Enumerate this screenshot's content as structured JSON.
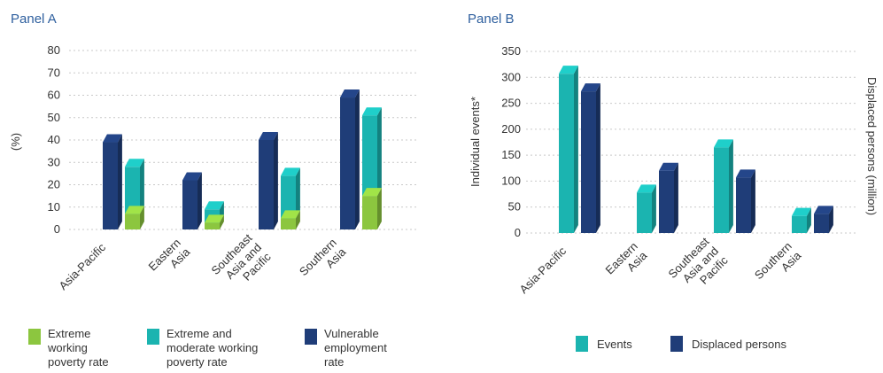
{
  "panels": {
    "a": {
      "title": "Panel A"
    },
    "b": {
      "title": "Panel B"
    }
  },
  "colors": {
    "lime": "#8cc63f",
    "teal": "#1bb4b0",
    "navy": "#1f3d78",
    "floor": "#d9d9d9",
    "title": "#2e5f9e"
  },
  "chart_data": [
    {
      "type": "bar",
      "title": "Panel A",
      "ylabel": "(%)",
      "ylim": [
        0,
        80
      ],
      "yticks": [
        0,
        10,
        20,
        30,
        40,
        50,
        60,
        70,
        80
      ],
      "grid": true,
      "categories": [
        "Asia-Pacific",
        "Eastern Asia",
        "Southeast Asia and Pacific",
        "Southern Asia"
      ],
      "category_label_lines": [
        [
          "Asia-Pacific"
        ],
        [
          "Eastern",
          "Asia"
        ],
        [
          "Southeast",
          "Asia and",
          "Pacific"
        ],
        [
          "Southern",
          "Asia"
        ]
      ],
      "series": [
        {
          "name": "Vulnerable employment rate",
          "values": [
            39,
            22,
            40,
            59
          ]
        },
        {
          "name": "Extreme and moderate working poverty rate",
          "values": [
            28,
            9,
            24,
            51
          ]
        },
        {
          "name": "Extreme working poverty rate",
          "values": [
            7,
            3,
            5,
            15
          ]
        }
      ],
      "legend": [
        {
          "name": "Extreme working poverty rate",
          "lines": [
            "Extreme",
            "working",
            "poverty rate"
          ],
          "color": "#8cc63f"
        },
        {
          "name": "Extreme and moderate working poverty rate",
          "lines": [
            "Extreme and",
            "moderate working",
            "poverty rate"
          ],
          "color": "#1bb4b0"
        },
        {
          "name": "Vulnerable employment rate",
          "lines": [
            "Vulnerable",
            "employment",
            "rate"
          ],
          "color": "#1f3d78"
        }
      ],
      "legend_position": "bottom"
    },
    {
      "type": "bar",
      "title": "Panel B",
      "ylabel": "Individual events*",
      "y2label": "Displaced persons (million)",
      "ylim": [
        0,
        350
      ],
      "yticks": [
        0,
        50,
        100,
        150,
        200,
        250,
        300,
        350
      ],
      "grid": true,
      "categories": [
        "Asia-Pacific",
        "Eastern Asia",
        "Southeast Asia and Pacific",
        "Southern Asia"
      ],
      "category_label_lines": [
        [
          "Asia-Pacific"
        ],
        [
          "Eastern",
          "Asia"
        ],
        [
          "Southeast",
          "Asia and",
          "Pacific"
        ],
        [
          "Southern",
          "Asia"
        ]
      ],
      "series": [
        {
          "name": "Events",
          "values": [
            307,
            78,
            165,
            33
          ]
        },
        {
          "name": "Displaced persons",
          "values": [
            273,
            120,
            107,
            37
          ]
        }
      ],
      "legend": [
        {
          "name": "Events",
          "color": "#1bb4b0"
        },
        {
          "name": "Displaced persons",
          "color": "#1f3d78"
        }
      ],
      "legend_position": "bottom"
    }
  ]
}
